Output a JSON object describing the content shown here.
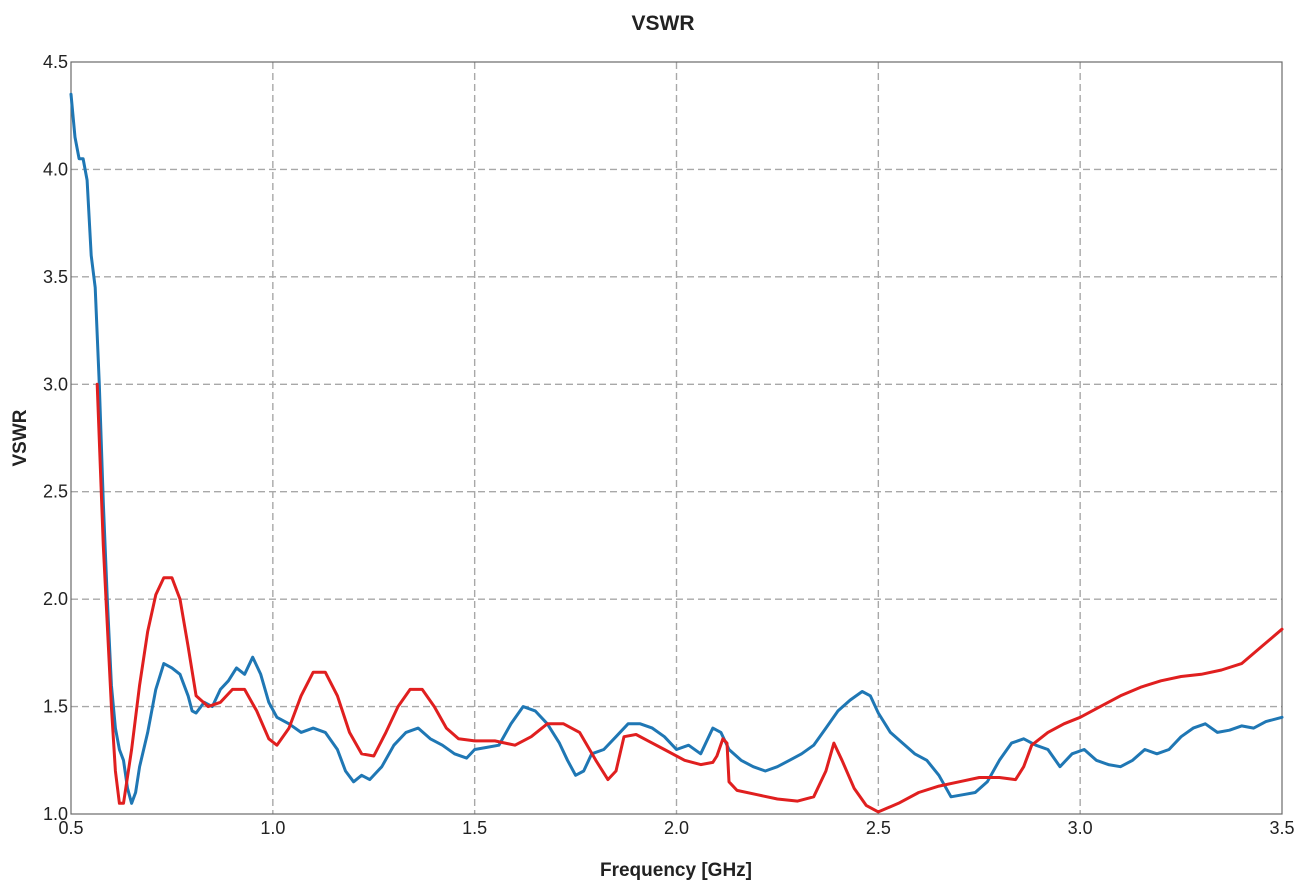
{
  "chart_data": {
    "type": "line",
    "title": "VSWR",
    "xlabel": "Frequency [GHz]",
    "ylabel": "VSWR",
    "xlim": [
      0.5,
      3.5
    ],
    "ylim": [
      1.0,
      4.5
    ],
    "x_ticks": [
      "0.5",
      "1.0",
      "1.5",
      "2.0",
      "2.5",
      "3.0",
      "3.5"
    ],
    "y_ticks": [
      "1.0",
      "1.5",
      "2.0",
      "2.5",
      "3.0",
      "3.5",
      "4.0",
      "4.5"
    ],
    "grid": true,
    "legend": "none",
    "series": [
      {
        "color": "#1f77b4",
        "points": [
          [
            0.5,
            4.35
          ],
          [
            0.51,
            4.15
          ],
          [
            0.52,
            4.05
          ],
          [
            0.53,
            4.05
          ],
          [
            0.54,
            3.95
          ],
          [
            0.55,
            3.6
          ],
          [
            0.56,
            3.45
          ],
          [
            0.57,
            3.0
          ],
          [
            0.58,
            2.45
          ],
          [
            0.59,
            2.0
          ],
          [
            0.6,
            1.6
          ],
          [
            0.61,
            1.4
          ],
          [
            0.62,
            1.3
          ],
          [
            0.63,
            1.25
          ],
          [
            0.64,
            1.12
          ],
          [
            0.65,
            1.05
          ],
          [
            0.66,
            1.1
          ],
          [
            0.67,
            1.22
          ],
          [
            0.69,
            1.38
          ],
          [
            0.71,
            1.58
          ],
          [
            0.73,
            1.7
          ],
          [
            0.75,
            1.68
          ],
          [
            0.77,
            1.65
          ],
          [
            0.79,
            1.55
          ],
          [
            0.8,
            1.48
          ],
          [
            0.81,
            1.47
          ],
          [
            0.83,
            1.52
          ],
          [
            0.85,
            1.5
          ],
          [
            0.87,
            1.58
          ],
          [
            0.89,
            1.62
          ],
          [
            0.91,
            1.68
          ],
          [
            0.93,
            1.65
          ],
          [
            0.95,
            1.73
          ],
          [
            0.97,
            1.65
          ],
          [
            0.99,
            1.52
          ],
          [
            1.01,
            1.45
          ],
          [
            1.04,
            1.42
          ],
          [
            1.07,
            1.38
          ],
          [
            1.1,
            1.4
          ],
          [
            1.13,
            1.38
          ],
          [
            1.16,
            1.3
          ],
          [
            1.18,
            1.2
          ],
          [
            1.2,
            1.15
          ],
          [
            1.22,
            1.18
          ],
          [
            1.24,
            1.16
          ],
          [
            1.27,
            1.22
          ],
          [
            1.3,
            1.32
          ],
          [
            1.33,
            1.38
          ],
          [
            1.36,
            1.4
          ],
          [
            1.39,
            1.35
          ],
          [
            1.42,
            1.32
          ],
          [
            1.45,
            1.28
          ],
          [
            1.48,
            1.26
          ],
          [
            1.5,
            1.3
          ],
          [
            1.53,
            1.31
          ],
          [
            1.56,
            1.32
          ],
          [
            1.59,
            1.42
          ],
          [
            1.62,
            1.5
          ],
          [
            1.65,
            1.48
          ],
          [
            1.68,
            1.42
          ],
          [
            1.71,
            1.33
          ],
          [
            1.73,
            1.25
          ],
          [
            1.75,
            1.18
          ],
          [
            1.77,
            1.2
          ],
          [
            1.79,
            1.28
          ],
          [
            1.82,
            1.3
          ],
          [
            1.85,
            1.36
          ],
          [
            1.88,
            1.42
          ],
          [
            1.91,
            1.42
          ],
          [
            1.94,
            1.4
          ],
          [
            1.97,
            1.36
          ],
          [
            2.0,
            1.3
          ],
          [
            2.03,
            1.32
          ],
          [
            2.06,
            1.28
          ],
          [
            2.09,
            1.4
          ],
          [
            2.11,
            1.38
          ],
          [
            2.13,
            1.3
          ],
          [
            2.16,
            1.25
          ],
          [
            2.19,
            1.22
          ],
          [
            2.22,
            1.2
          ],
          [
            2.25,
            1.22
          ],
          [
            2.28,
            1.25
          ],
          [
            2.31,
            1.28
          ],
          [
            2.34,
            1.32
          ],
          [
            2.37,
            1.4
          ],
          [
            2.4,
            1.48
          ],
          [
            2.43,
            1.53
          ],
          [
            2.46,
            1.57
          ],
          [
            2.48,
            1.55
          ],
          [
            2.5,
            1.47
          ],
          [
            2.53,
            1.38
          ],
          [
            2.56,
            1.33
          ],
          [
            2.59,
            1.28
          ],
          [
            2.62,
            1.25
          ],
          [
            2.65,
            1.18
          ],
          [
            2.68,
            1.08
          ],
          [
            2.71,
            1.09
          ],
          [
            2.74,
            1.1
          ],
          [
            2.77,
            1.15
          ],
          [
            2.8,
            1.25
          ],
          [
            2.83,
            1.33
          ],
          [
            2.86,
            1.35
          ],
          [
            2.89,
            1.32
          ],
          [
            2.92,
            1.3
          ],
          [
            2.95,
            1.22
          ],
          [
            2.98,
            1.28
          ],
          [
            3.01,
            1.3
          ],
          [
            3.04,
            1.25
          ],
          [
            3.07,
            1.23
          ],
          [
            3.1,
            1.22
          ],
          [
            3.13,
            1.25
          ],
          [
            3.16,
            1.3
          ],
          [
            3.19,
            1.28
          ],
          [
            3.22,
            1.3
          ],
          [
            3.25,
            1.36
          ],
          [
            3.28,
            1.4
          ],
          [
            3.31,
            1.42
          ],
          [
            3.34,
            1.38
          ],
          [
            3.37,
            1.39
          ],
          [
            3.4,
            1.41
          ],
          [
            3.43,
            1.4
          ],
          [
            3.46,
            1.43
          ],
          [
            3.5,
            1.45
          ]
        ]
      },
      {
        "color": "#e01f1f",
        "points": [
          [
            0.565,
            3.0
          ],
          [
            0.58,
            2.25
          ],
          [
            0.6,
            1.5
          ],
          [
            0.61,
            1.2
          ],
          [
            0.62,
            1.05
          ],
          [
            0.63,
            1.05
          ],
          [
            0.65,
            1.3
          ],
          [
            0.67,
            1.6
          ],
          [
            0.69,
            1.85
          ],
          [
            0.71,
            2.02
          ],
          [
            0.73,
            2.1
          ],
          [
            0.75,
            2.1
          ],
          [
            0.77,
            2.0
          ],
          [
            0.79,
            1.78
          ],
          [
            0.81,
            1.55
          ],
          [
            0.84,
            1.5
          ],
          [
            0.87,
            1.52
          ],
          [
            0.9,
            1.58
          ],
          [
            0.93,
            1.58
          ],
          [
            0.96,
            1.48
          ],
          [
            0.99,
            1.35
          ],
          [
            1.01,
            1.32
          ],
          [
            1.04,
            1.4
          ],
          [
            1.07,
            1.55
          ],
          [
            1.1,
            1.66
          ],
          [
            1.13,
            1.66
          ],
          [
            1.16,
            1.55
          ],
          [
            1.19,
            1.38
          ],
          [
            1.22,
            1.28
          ],
          [
            1.25,
            1.27
          ],
          [
            1.28,
            1.38
          ],
          [
            1.31,
            1.5
          ],
          [
            1.34,
            1.58
          ],
          [
            1.37,
            1.58
          ],
          [
            1.4,
            1.5
          ],
          [
            1.43,
            1.4
          ],
          [
            1.46,
            1.35
          ],
          [
            1.5,
            1.34
          ],
          [
            1.55,
            1.34
          ],
          [
            1.6,
            1.32
          ],
          [
            1.64,
            1.36
          ],
          [
            1.68,
            1.42
          ],
          [
            1.72,
            1.42
          ],
          [
            1.76,
            1.38
          ],
          [
            1.8,
            1.25
          ],
          [
            1.83,
            1.16
          ],
          [
            1.85,
            1.2
          ],
          [
            1.87,
            1.36
          ],
          [
            1.9,
            1.37
          ],
          [
            1.93,
            1.34
          ],
          [
            1.97,
            1.3
          ],
          [
            2.02,
            1.25
          ],
          [
            2.06,
            1.23
          ],
          [
            2.09,
            1.24
          ],
          [
            2.1,
            1.27
          ],
          [
            2.115,
            1.35
          ],
          [
            2.125,
            1.33
          ],
          [
            2.13,
            1.15
          ],
          [
            2.15,
            1.11
          ],
          [
            2.2,
            1.09
          ],
          [
            2.25,
            1.07
          ],
          [
            2.3,
            1.06
          ],
          [
            2.34,
            1.08
          ],
          [
            2.37,
            1.2
          ],
          [
            2.39,
            1.33
          ],
          [
            2.41,
            1.25
          ],
          [
            2.44,
            1.12
          ],
          [
            2.47,
            1.04
          ],
          [
            2.5,
            1.01
          ],
          [
            2.55,
            1.05
          ],
          [
            2.6,
            1.1
          ],
          [
            2.65,
            1.13
          ],
          [
            2.7,
            1.15
          ],
          [
            2.75,
            1.17
          ],
          [
            2.8,
            1.17
          ],
          [
            2.84,
            1.16
          ],
          [
            2.86,
            1.22
          ],
          [
            2.88,
            1.32
          ],
          [
            2.92,
            1.38
          ],
          [
            2.96,
            1.42
          ],
          [
            3.0,
            1.45
          ],
          [
            3.05,
            1.5
          ],
          [
            3.1,
            1.55
          ],
          [
            3.15,
            1.59
          ],
          [
            3.2,
            1.62
          ],
          [
            3.25,
            1.64
          ],
          [
            3.3,
            1.65
          ],
          [
            3.35,
            1.67
          ],
          [
            3.4,
            1.7
          ],
          [
            3.45,
            1.78
          ],
          [
            3.5,
            1.86
          ]
        ]
      }
    ]
  }
}
